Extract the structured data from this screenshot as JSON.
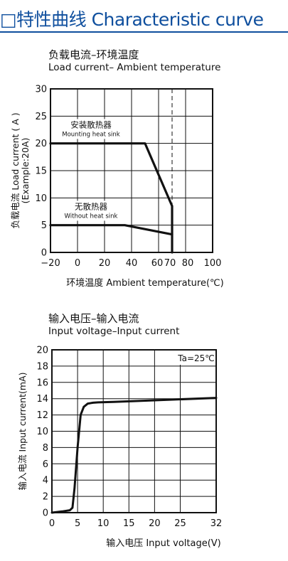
{
  "header": {
    "title": "□特性曲线 Characteristic curve"
  },
  "chart_data": [
    {
      "type": "line",
      "title": "负载电流–环境温度",
      "subtitle": "Load current– Ambient temperature",
      "xlabel": "环境温度 Ambient temperature(℃)",
      "ylabel": "负载电流 Load current ( A )",
      "ylabel2": "(Example:20A)",
      "x_ticks": [
        "−20",
        "0",
        "20",
        "40",
        "60",
        "70",
        "80",
        "100"
      ],
      "y_ticks": [
        "0",
        "5",
        "10",
        "15",
        "20",
        "25",
        "30"
      ],
      "xlim": [
        -20,
        100
      ],
      "ylim": [
        0,
        30
      ],
      "grid": true,
      "series": [
        {
          "name": "安装散热器",
          "name_en": "Mounting heat sink",
          "x": [
            -20,
            50,
            70,
            70
          ],
          "y": [
            20,
            20,
            8.5,
            0
          ]
        },
        {
          "name": "无散热器",
          "name_en": "Without heat sink",
          "x": [
            -20,
            35,
            70
          ],
          "y": [
            5,
            5,
            3.3
          ]
        }
      ],
      "reference_line_x": 70
    },
    {
      "type": "line",
      "title": "输入电压–输入电流",
      "subtitle": "Input voltage–Input current",
      "xlabel": "输入电压 Input voltage(V)",
      "ylabel": "输入电流 Input current(mA)",
      "annotation": "Ta=25℃",
      "x_ticks": [
        "0",
        "5",
        "10",
        "15",
        "20",
        "25",
        "32"
      ],
      "y_ticks": [
        "0",
        "2",
        "4",
        "6",
        "8",
        "10",
        "12",
        "14",
        "16",
        "18",
        "20"
      ],
      "xlim": [
        0,
        32
      ],
      "ylim": [
        0,
        20
      ],
      "grid": true,
      "series": [
        {
          "x": [
            0,
            2,
            3.5,
            4,
            4.4,
            5,
            5.6,
            6.2,
            7,
            8,
            9,
            12,
            20,
            32
          ],
          "y": [
            0,
            0.15,
            0.3,
            0.6,
            3,
            8,
            12,
            13,
            13.4,
            13.5,
            13.55,
            13.6,
            13.8,
            14.1
          ]
        }
      ],
      "reference_line_x": 32
    }
  ]
}
